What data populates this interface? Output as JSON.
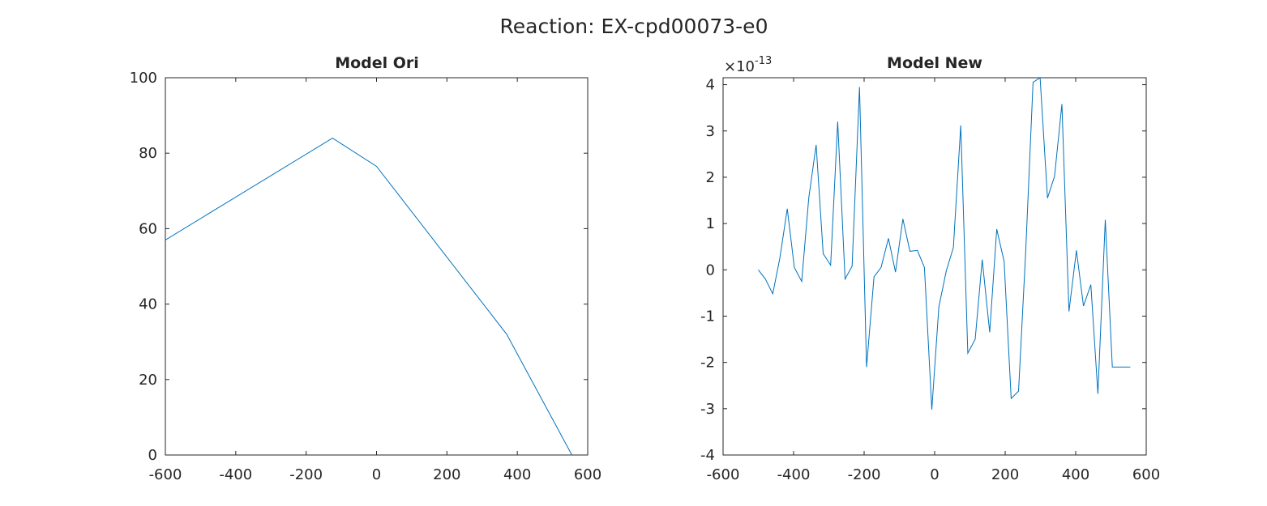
{
  "figure": {
    "title": "Reaction: EX-cpd00073-e0",
    "line_color": "#0072BD",
    "axes_color": "#262626"
  },
  "chart_data": [
    {
      "type": "line",
      "title": "Model Ori",
      "xlim": [
        -600,
        600
      ],
      "ylim": [
        0,
        100
      ],
      "xticks": [
        -600,
        -400,
        -200,
        0,
        200,
        400,
        600
      ],
      "yticks": [
        0,
        20,
        40,
        60,
        80,
        100
      ],
      "xticklabels": [
        "-600",
        "-400",
        "-200",
        "0",
        "200",
        "400",
        "600"
      ],
      "yticklabels": [
        "0",
        "20",
        "40",
        "60",
        "80",
        "100"
      ],
      "x": [
        -600,
        -125,
        0,
        370,
        555
      ],
      "y": [
        57,
        84,
        76.5,
        32,
        0
      ]
    },
    {
      "type": "line",
      "title": "Model New",
      "xlim": [
        -600,
        600
      ],
      "ylim": [
        -4,
        4.15
      ],
      "y_exponent": "-13",
      "y_exponent_base": "×10",
      "xticks": [
        -600,
        -400,
        -200,
        0,
        200,
        400,
        600
      ],
      "yticks": [
        -4,
        -3,
        -2,
        -1,
        0,
        1,
        2,
        3,
        4
      ],
      "xticklabels": [
        "-600",
        "-400",
        "-200",
        "0",
        "200",
        "400",
        "600"
      ],
      "yticklabels": [
        "-4",
        "-3",
        "-2",
        "-1",
        "0",
        "1",
        "2",
        "3",
        "4"
      ],
      "x": [
        -500,
        -480,
        -459,
        -439,
        -418,
        -398,
        -377,
        -357,
        -336,
        -316,
        -295,
        -275,
        -254,
        -234,
        -213,
        -193,
        -172,
        -152,
        -131,
        -111,
        -90,
        -70,
        -49,
        -29,
        -8,
        12,
        33,
        53,
        74,
        94,
        115,
        135,
        156,
        176,
        197,
        217,
        238,
        258,
        279,
        299,
        320,
        340,
        361,
        381,
        402,
        422,
        443,
        463,
        484,
        504,
        525,
        545,
        555
      ],
      "y": [
        0,
        -0.2,
        -0.52,
        0.25,
        1.32,
        0.05,
        -0.25,
        1.55,
        2.7,
        0.35,
        0.1,
        3.2,
        -0.2,
        0.08,
        3.95,
        -2.1,
        -0.15,
        0.05,
        0.68,
        -0.05,
        1.1,
        0.4,
        0.42,
        0.05,
        -3.02,
        -0.8,
        -0.02,
        0.48,
        3.12,
        -1.8,
        -1.5,
        0.22,
        -1.35,
        0.88,
        0.18,
        -2.78,
        -2.62,
        0.35,
        4.05,
        4.15,
        1.55,
        2.02,
        3.58,
        -0.9,
        0.42,
        -0.78,
        -0.32,
        -2.68,
        1.08,
        -2.1,
        -2.1,
        -2.1,
        -2.1
      ]
    }
  ]
}
